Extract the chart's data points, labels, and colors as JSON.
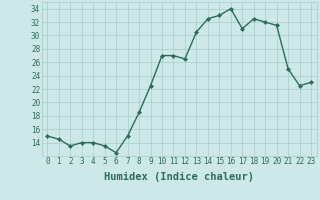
{
  "title": "",
  "xlabel": "Humidex (Indice chaleur)",
  "x_values": [
    0,
    1,
    2,
    3,
    4,
    5,
    6,
    7,
    8,
    9,
    10,
    11,
    12,
    13,
    14,
    15,
    16,
    17,
    18,
    19,
    20,
    21,
    22,
    23
  ],
  "y_values": [
    15,
    14.5,
    13.5,
    14,
    14,
    13.5,
    12.5,
    15,
    18.5,
    22.5,
    27,
    27,
    26.5,
    30.5,
    32.5,
    33,
    34,
    31,
    32.5,
    32,
    31.5,
    25,
    22.5,
    23
  ],
  "line_color": "#2e6b5e",
  "marker": "D",
  "marker_size": 2.0,
  "bg_color": "#cce8e8",
  "grid_color": "#aacccc",
  "ylim": [
    12,
    35
  ],
  "yticks": [
    14,
    16,
    18,
    20,
    22,
    24,
    26,
    28,
    30,
    32,
    34
  ],
  "xticks": [
    0,
    1,
    2,
    3,
    4,
    5,
    6,
    7,
    8,
    9,
    10,
    11,
    12,
    13,
    14,
    15,
    16,
    17,
    18,
    19,
    20,
    21,
    22,
    23
  ],
  "tick_label_fontsize": 5.5,
  "xlabel_fontsize": 7.5,
  "line_width": 1.0
}
